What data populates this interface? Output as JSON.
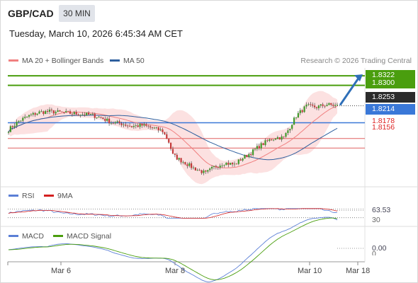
{
  "header": {
    "symbol": "GBP/CAD",
    "timeframe": "30 MIN",
    "timestamp": "Tuesday, March 10, 2026 6:45:34 AM CET"
  },
  "legend": {
    "ma20_label": "MA 20 + Bollinger Bands",
    "ma50_label": "MA 50",
    "copyright": "Research © 2026 Trading Central"
  },
  "colors": {
    "ma20": "#f08080",
    "ma50": "#2e5f9e",
    "bollinger_fill": "#fcdcdc",
    "resistance_green": "#4a9e0e",
    "support_red": "#e06060",
    "pivot_blue": "#3a78d8",
    "current_price_bg": "#2b2b2b",
    "rsi_line": "#5b7fd6",
    "rsi_ma": "#d42020",
    "macd_line": "#5b7fd6",
    "macd_signal": "#4a9e0e",
    "arrow": "#2e6fb8"
  },
  "price_labels": {
    "r2": "1.8322",
    "r1": "1.8300",
    "current": "1.8253",
    "pivot": "1.8214",
    "s1": "1.8178",
    "s2": "1.8156"
  },
  "rsi": {
    "label": "RSI",
    "ma_label": "9MA",
    "value": "63.53",
    "lower_level": "30"
  },
  "macd": {
    "label": "MACD",
    "signal_label": "MACD Signal",
    "value": "0.00",
    "zero_tick": "0"
  },
  "x_axis": {
    "labels": [
      "Mar 6",
      "Mar 8",
      "Mar 10",
      "Mar 18"
    ]
  },
  "chart_data": {
    "type": "candlestick",
    "symbol": "GBP/CAD",
    "timeframe": "30 MIN",
    "ylim": [
      1.808,
      1.834
    ],
    "levels": {
      "resistance": [
        1.8322,
        1.83
      ],
      "pivot": 1.8214,
      "support": [
        1.8178,
        1.8156
      ],
      "current": 1.8253
    },
    "x_ticks": [
      "Mar 6",
      "Mar 8",
      "Mar 10",
      "Mar 18"
    ],
    "price_path": [
      [
        0,
        1.8198
      ],
      [
        5,
        1.8218
      ],
      [
        10,
        1.823
      ],
      [
        15,
        1.8238
      ],
      [
        20,
        1.824
      ],
      [
        25,
        1.8238
      ],
      [
        30,
        1.8236
      ],
      [
        35,
        1.8234
      ],
      [
        40,
        1.8232
      ],
      [
        45,
        1.8226
      ],
      [
        50,
        1.8215
      ],
      [
        55,
        1.8212
      ],
      [
        60,
        1.8206
      ],
      [
        65,
        1.8208
      ],
      [
        70,
        1.8202
      ],
      [
        75,
        1.8195
      ],
      [
        78,
        1.817
      ],
      [
        80,
        1.814
      ],
      [
        83,
        1.813
      ],
      [
        86,
        1.8122
      ],
      [
        90,
        1.811
      ],
      [
        93,
        1.8104
      ],
      [
        96,
        1.8098
      ],
      [
        100,
        1.8112
      ],
      [
        105,
        1.8122
      ],
      [
        110,
        1.8118
      ],
      [
        113,
        1.813
      ],
      [
        118,
        1.8145
      ],
      [
        122,
        1.816
      ],
      [
        126,
        1.8172
      ],
      [
        130,
        1.818
      ],
      [
        134,
        1.818
      ],
      [
        137,
        1.8205
      ],
      [
        140,
        1.823
      ],
      [
        145,
        1.8252
      ],
      [
        150,
        1.825
      ],
      [
        155,
        1.8256
      ],
      [
        160,
        1.8253
      ]
    ],
    "rsi": {
      "value": 63.53,
      "levels": [
        70,
        30
      ]
    },
    "macd": {
      "value": 0.0
    }
  }
}
